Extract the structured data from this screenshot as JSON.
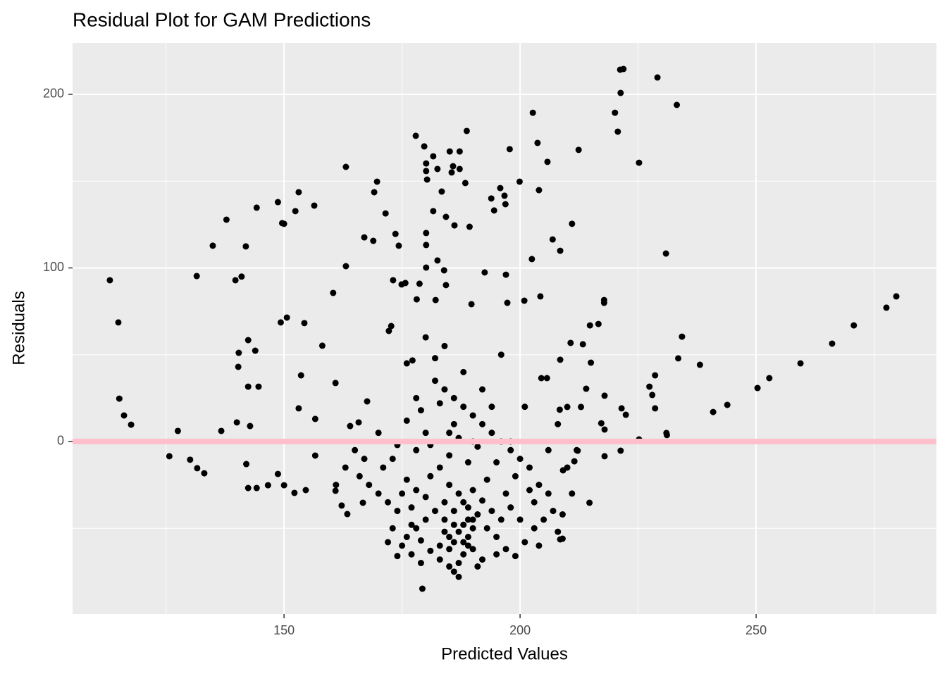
{
  "chart_data": {
    "type": "scatter",
    "title": "Residual Plot for GAM Predictions",
    "x_label": "Predicted Values",
    "y_label": "Residuals",
    "color": "#000000",
    "panel_color": "#ebebeb",
    "grid": true,
    "xlim": [
      105.2,
      288.2
    ],
    "ylim": [
      -99.4,
      229.6
    ],
    "xticks": [
      150,
      200,
      250
    ],
    "yticks": [
      0,
      100,
      200
    ],
    "xminor": [
      125,
      175,
      225,
      275
    ],
    "yminor": [
      -50,
      50,
      150
    ],
    "hline": {
      "value": 0,
      "color": "#ffc0cb"
    },
    "x": [
      113.1,
      114.9,
      115.1,
      116.1,
      117.6,
      125.7,
      127.5,
      130.1,
      131.5,
      131.6,
      133.1,
      134.9,
      136.7,
      137.8,
      139.7,
      140.3,
      140.4,
      140,
      141,
      141.9,
      142,
      142.4,
      142.4,
      142.4,
      142.8,
      143.9,
      144.2,
      144.2,
      144.6,
      146.6,
      148.7,
      148.7,
      149.3,
      149.6,
      150,
      150,
      150.6,
      152.2,
      152.4,
      153.1,
      153.1,
      153.6,
      154.3,
      154.6,
      156.4,
      156.6,
      156.6,
      158.1,
      160.4,
      160.9,
      160.9,
      162.2,
      163.1,
      163.1,
      163.4,
      164,
      165.8,
      166.7,
      167,
      167.6,
      168.9,
      169.1,
      169.7,
      171.5,
      172.2,
      172.7,
      173.1,
      173.6,
      174.3,
      174.9,
      175.7,
      177.2,
      177.9,
      178.1,
      178.7,
      179.3,
      179.7,
      180.1,
      180.1,
      180.1,
      180.1,
      180.1,
      180.3,
      181.6,
      181.6,
      182.1,
      182.5,
      182.5,
      183.4,
      183.9,
      184.3,
      184.3,
      185.1,
      185.5,
      185.8,
      186.1,
      187.2,
      187.2,
      188.4,
      188.7,
      189.3,
      189.7,
      192.5,
      193.9,
      194.5,
      195.8,
      196.7,
      196.9,
      197,
      197.3,
      197.8,
      199.9,
      200.9,
      202.5,
      202.7,
      203.7,
      204,
      204.3,
      205.8,
      206.9,
      208.5,
      211,
      212.4,
      214.8,
      217.8,
      217.8,
      220.1,
      220.7,
      221.2,
      221.3,
      221.9,
      225.2,
      229.1,
      230.9,
      233.2,
      234.3,
      238.1,
      240.9,
      243.9,
      250.3,
      252.8,
      259.4,
      266.1,
      270.7,
      277.6,
      279.7,
      233.5,
      228.6,
      228,
      227.4,
      228.6,
      231,
      231.1,
      221.5,
      222.4,
      221.3,
      225.2,
      217.9,
      217.9,
      217.9,
      217.2,
      216.6,
      215,
      214.7,
      214,
      213.3,
      212.9,
      210.7,
      210,
      208.5,
      208.4,
      212.2,
      211.5,
      209.1,
      208.5,
      204.5,
      205.7,
      175,
      176,
      178,
      180,
      182,
      184,
      185,
      186,
      187,
      188,
      188,
      189,
      189,
      190,
      190,
      187,
      186,
      185,
      183,
      181,
      179,
      177,
      174,
      172,
      170,
      168,
      166,
      171,
      173,
      176,
      178,
      181,
      183,
      185,
      187,
      189,
      191,
      193,
      195,
      197,
      199,
      201,
      203,
      205,
      207,
      208,
      209,
      206,
      204,
      202,
      200,
      198,
      196,
      194,
      192,
      190,
      188,
      186,
      184,
      182,
      180,
      178,
      176,
      174,
      179,
      183,
      187,
      191,
      195,
      199,
      203,
      197,
      193,
      189,
      185,
      181,
      184,
      186,
      188,
      190,
      192,
      194,
      196,
      198,
      180,
      177,
      175,
      173,
      172,
      174,
      184,
      186,
      188,
      190,
      192,
      191,
      187,
      183,
      185,
      189,
      179,
      177,
      195,
      200,
      202,
      204,
      170,
      167,
      165,
      163,
      161,
      206,
      208,
      210,
      212,
      211,
      209,
      176,
      180,
      184,
      188,
      192,
      196,
      178,
      182,
      186,
      194,
      198,
      201,
      190,
      185
    ],
    "values": [
      92.9,
      68.6,
      24.7,
      15,
      9.7,
      -8.5,
      6.1,
      -10.5,
      95.3,
      -15.4,
      -18.3,
      112.8,
      6.1,
      127.8,
      92.9,
      43,
      51.1,
      11,
      95,
      112.4,
      -13,
      58.4,
      31.6,
      -26.8,
      8.9,
      52.3,
      134.7,
      -26.8,
      31.6,
      -25.2,
      137.9,
      -18.7,
      68.6,
      125.8,
      125.4,
      -25.2,
      71.4,
      -29.6,
      132.7,
      143.6,
      19.1,
      38.1,
      68.2,
      -28,
      135.9,
      -8.1,
      13,
      55.2,
      85.6,
      33.7,
      -28.4,
      -36.9,
      101,
      158.2,
      -41.8,
      8.9,
      11,
      -35.3,
      117.6,
      23.1,
      115.6,
      143.6,
      149.7,
      131.4,
      63.7,
      66.5,
      92.9,
      119.6,
      112.8,
      90.5,
      91.3,
      46.7,
      176.1,
      81.9,
      90.9,
      -84.8,
      170,
      120.1,
      113.2,
      100.2,
      155.8,
      160.2,
      150.9,
      164.3,
      132.7,
      81.5,
      104.3,
      157,
      144,
      98.6,
      90.1,
      129.4,
      167.1,
      155,
      158.6,
      124.5,
      157,
      167.1,
      148.9,
      178.9,
      123.7,
      79.1,
      97.4,
      140,
      133.1,
      146,
      141.6,
      136.7,
      96.1,
      79.9,
      168.4,
      149.7,
      81.1,
      105.1,
      189.4,
      172,
      144.8,
      83.6,
      161.1,
      116.4,
      109.9,
      125.4,
      168,
      66.9,
      81.5,
      79.9,
      189.4,
      178.5,
      214.2,
      200.8,
      214.6,
      160.6,
      209.7,
      108.3,
      193.9,
      60.4,
      44.2,
      17,
      21.1,
      30.8,
      36.5,
      45,
      56.4,
      66.9,
      77.1,
      83.6,
      47.9,
      38.1,
      26.8,
      31.6,
      19.1,
      4.9,
      3.7,
      19.1,
      15.4,
      -5.3,
      1.2,
      26.4,
      6.9,
      -8.5,
      10.5,
      67.7,
      45.4,
      -35.3,
      30.4,
      56,
      19.9,
      56.8,
      19.9,
      47.1,
      18.3,
      -5.3,
      -11.4,
      -16.6,
      -56.4,
      36.5,
      36.5,
      -60,
      -55,
      -50,
      -45,
      -40,
      -35,
      -62,
      -58,
      -52,
      -48,
      -65,
      -60,
      -55,
      -50,
      -45,
      -70,
      -75,
      -72,
      -68,
      -63,
      -57,
      -48,
      -40,
      -35,
      -30,
      -25,
      -20,
      -15,
      -10,
      -22,
      -28,
      -20,
      -15,
      -25,
      -30,
      -38,
      -42,
      -50,
      -55,
      -62,
      -66,
      -58,
      -50,
      -45,
      -40,
      -52,
      -56,
      -30,
      -25,
      -15,
      -10,
      -5,
      0,
      5,
      10,
      15,
      20,
      25,
      30,
      35,
      5,
      -5,
      12,
      -2,
      18,
      22,
      2,
      -3,
      -12,
      -20,
      -35,
      -30,
      -22,
      -12,
      -8,
      -2,
      -45,
      -40,
      -35,
      -28,
      -34,
      -40,
      -45,
      -38,
      -32,
      -38,
      -30,
      -50,
      -58,
      -66,
      -52,
      -48,
      -58,
      -62,
      -68,
      -72,
      -78,
      -60,
      -55,
      -45,
      -70,
      -65,
      -65,
      -45,
      -28,
      -60,
      5,
      -10,
      -5,
      -15,
      -25,
      -5,
      10,
      -15,
      -5,
      -30,
      -42,
      45,
      60,
      55,
      40,
      30,
      50,
      25,
      48,
      10,
      20,
      0,
      20,
      0,
      5
    ]
  }
}
